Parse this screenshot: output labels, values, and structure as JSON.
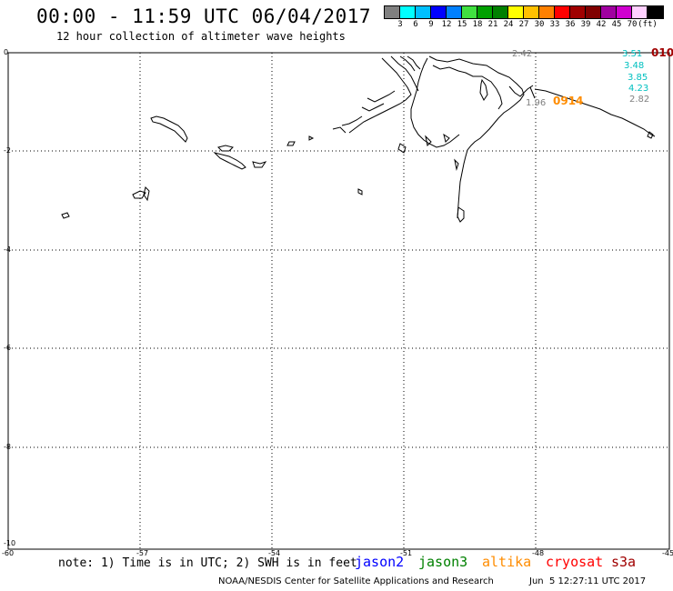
{
  "header": {
    "title": "00:00 - 11:59 UTC 06/04/2017",
    "subtitle": "12 hour collection of altimeter wave heights"
  },
  "colorbar": {
    "colors": [
      "#808080",
      "#00ffff",
      "#00c0ff",
      "#0000ff",
      "#0080ff",
      "#40e040",
      "#00a000",
      "#008000",
      "#ffff00",
      "#ffc000",
      "#ff8000",
      "#ff0000",
      "#a00000",
      "#800000",
      "#a000a0",
      "#d000d0",
      "#ffd0ff",
      "#000000"
    ],
    "labels": [
      "3",
      "6",
      "9",
      "12",
      "15",
      "18",
      "21",
      "24",
      "27",
      "30",
      "33",
      "36",
      "39",
      "42",
      "45",
      "70",
      "(ft)"
    ]
  },
  "axes": {
    "y_ticks": [
      "0",
      "-2",
      "-4",
      "-6",
      "-8",
      "-10"
    ],
    "x_ticks": [
      "-60",
      "-57",
      "-54",
      "-51",
      "-48",
      "-45"
    ]
  },
  "annotations": [
    {
      "text": "2.42",
      "color": "#808080"
    },
    {
      "text": "3.51",
      "color": "#00c0c0"
    },
    {
      "text": "3.48",
      "color": "#00c0c0"
    },
    {
      "text": "3.85",
      "color": "#00c0c0"
    },
    {
      "text": "4.23",
      "color": "#00c0c0"
    },
    {
      "text": "2.82",
      "color": "#808080"
    },
    {
      "text": "1.96",
      "color": "#808080"
    },
    {
      "text": "0914",
      "color": "#ff8c00"
    },
    {
      "text": "010",
      "color": "#a00000"
    }
  ],
  "footer": {
    "note": "note: 1) Time is in UTC; 2) SWH is in feet",
    "legend": [
      {
        "name": "jason2",
        "color": "#0000ff"
      },
      {
        "name": "jason3",
        "color": "#008000"
      },
      {
        "name": "altika",
        "color": "#ff8c00"
      },
      {
        "name": "cryosat",
        "color": "#ff0000"
      },
      {
        "name": "s3a",
        "color": "#a00000"
      }
    ],
    "credit": "NOAA/NESDIS Center for Satellite Applications and Research",
    "timestamp": "Jun  5 12:27:11 UTC 2017"
  }
}
